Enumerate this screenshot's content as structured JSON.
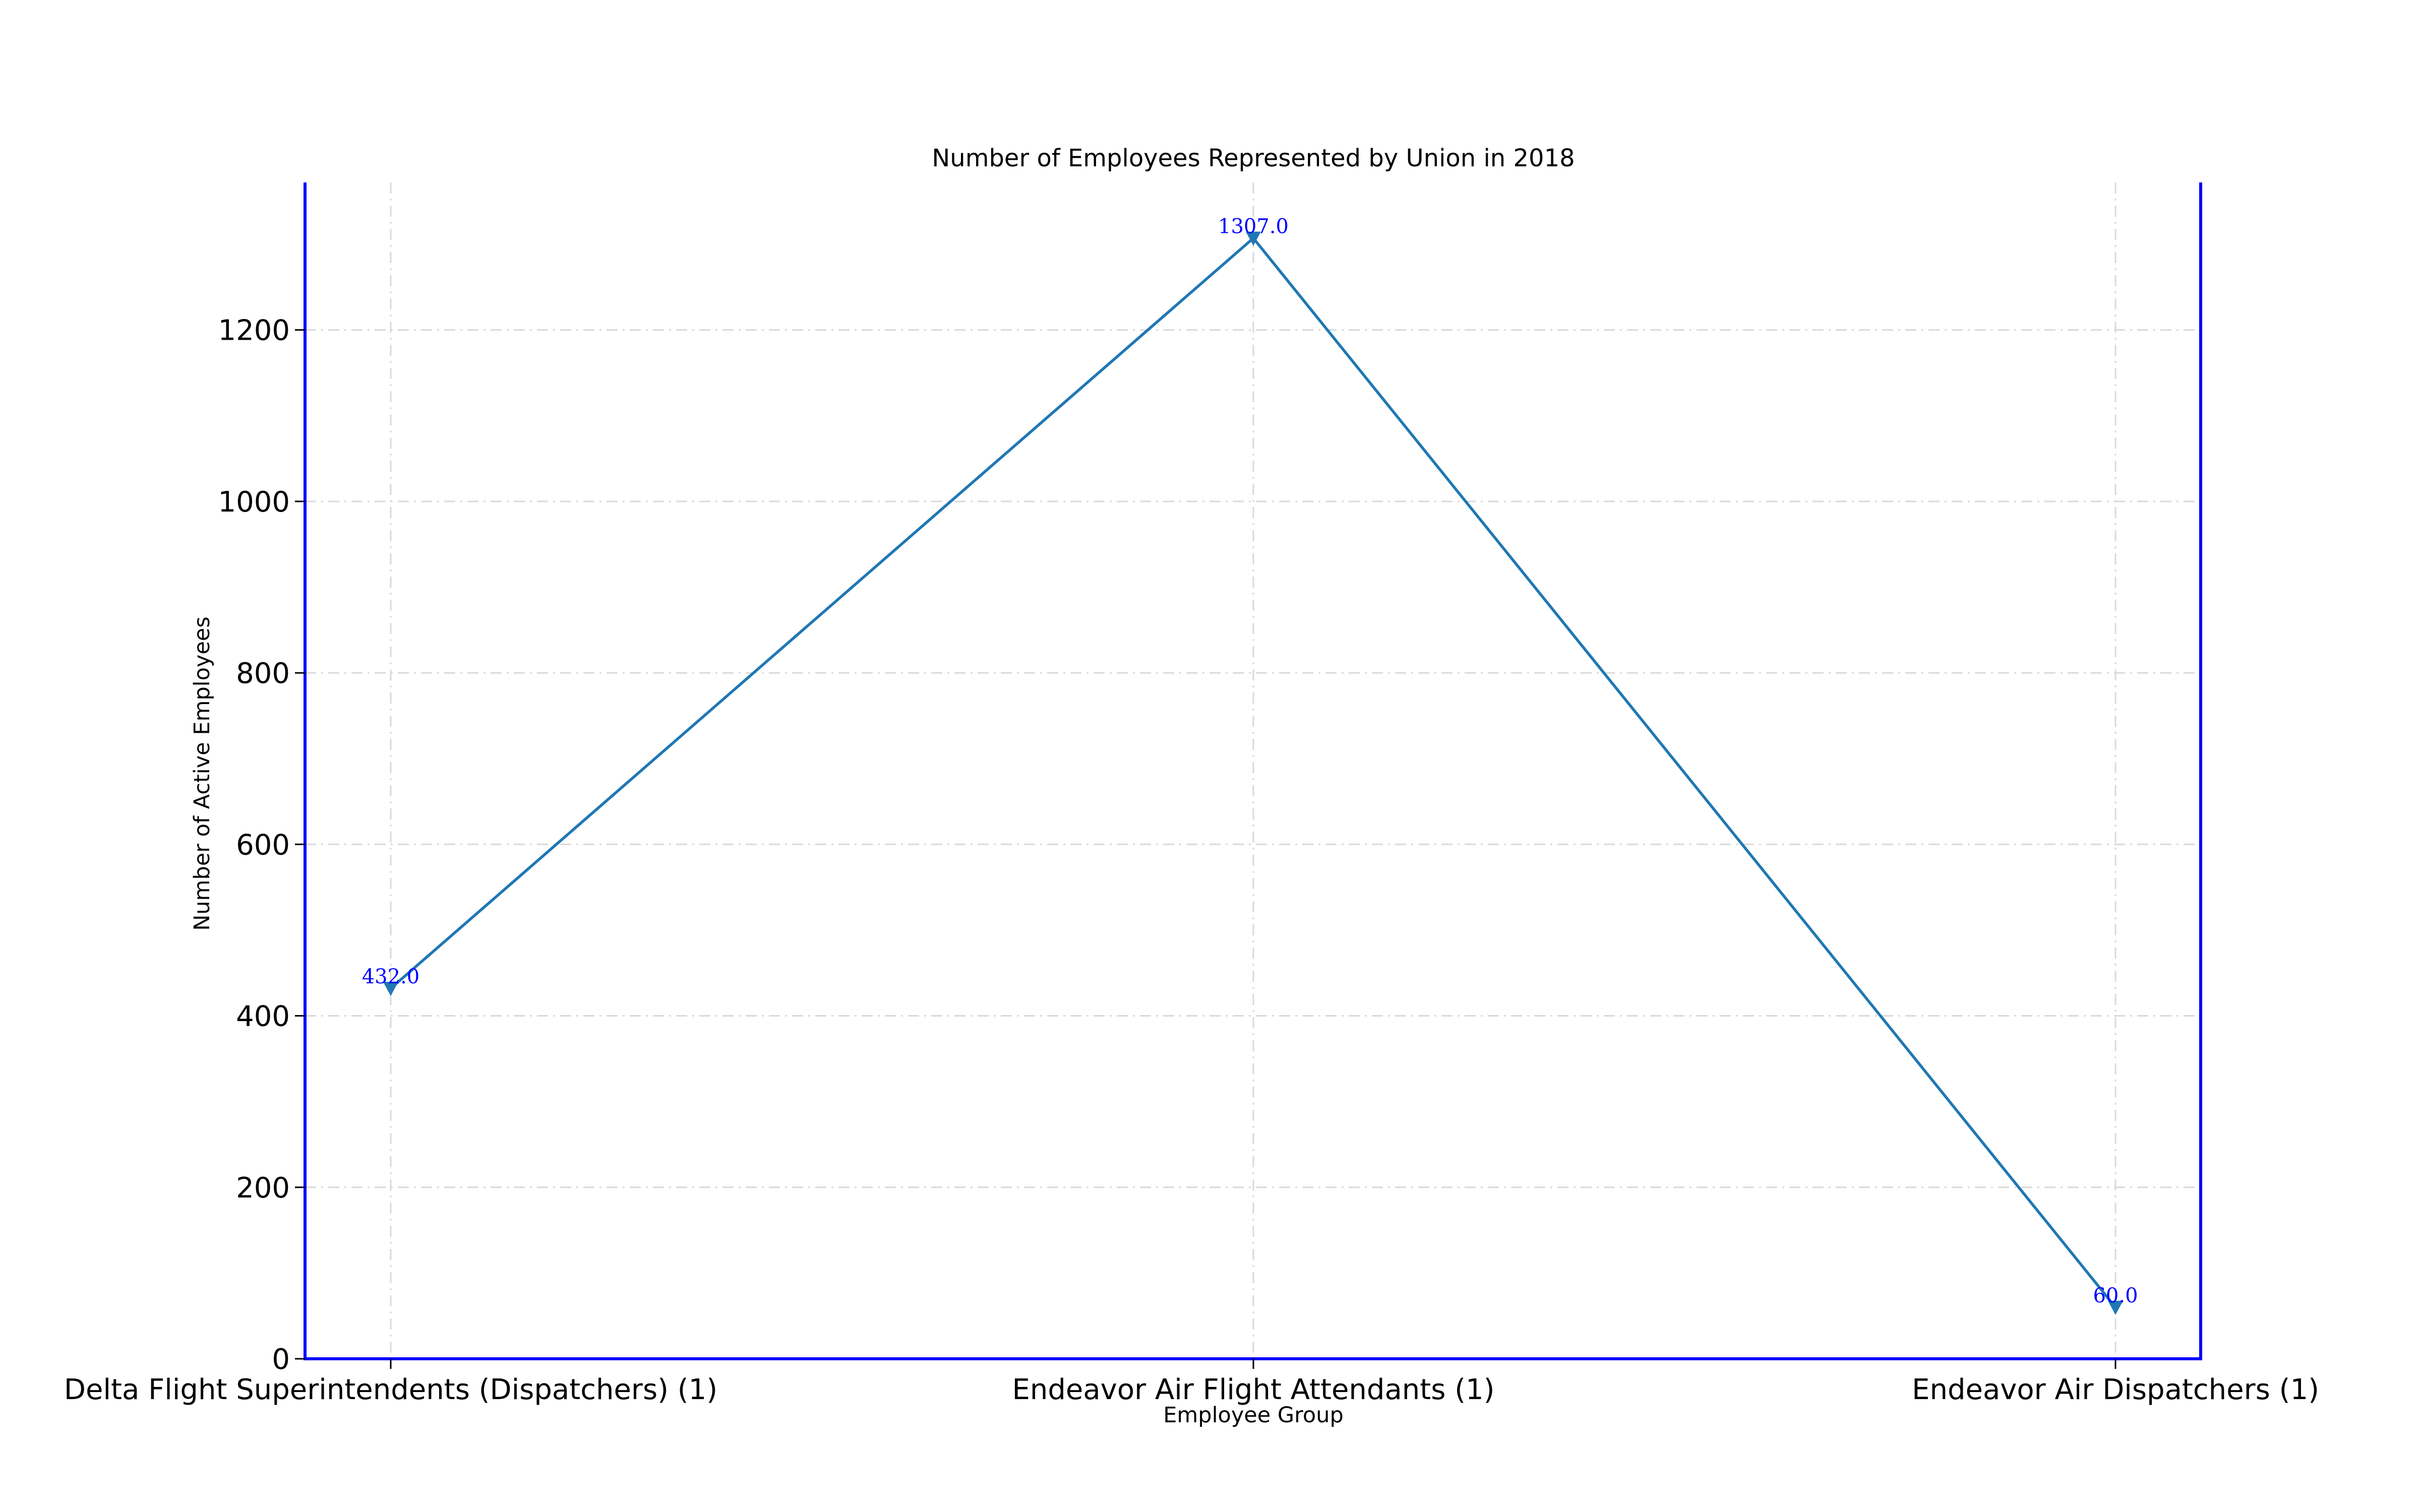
{
  "chart_data": {
    "type": "line",
    "title": "Number of Employees Represented by Union in 2018",
    "xlabel": "Employee Group",
    "ylabel": "Number of Active Employees",
    "categories": [
      "Delta Flight Superintendents (Dispatchers) (1)",
      "Endeavor Air Flight Attendants (1)",
      "Endeavor Air Dispatchers (1)"
    ],
    "series": [
      {
        "values": [
          432,
          1307,
          60
        ]
      }
    ],
    "data_labels": [
      "432.0",
      "1307.0",
      "60.0"
    ],
    "yticks": [
      0,
      200,
      400,
      600,
      800,
      1000,
      1200
    ],
    "ytick_labels": [
      "0",
      "200",
      "400",
      "600",
      "800",
      "1000",
      "1200"
    ],
    "ylim": [
      0,
      1372
    ],
    "grid": true,
    "marker": "triangle-down",
    "colors": {
      "line": "#1f77b4",
      "marker": "#1f77b4",
      "data_label": "#0000ff",
      "spine": "#0000ff",
      "grid": "#d9d9d9"
    }
  }
}
